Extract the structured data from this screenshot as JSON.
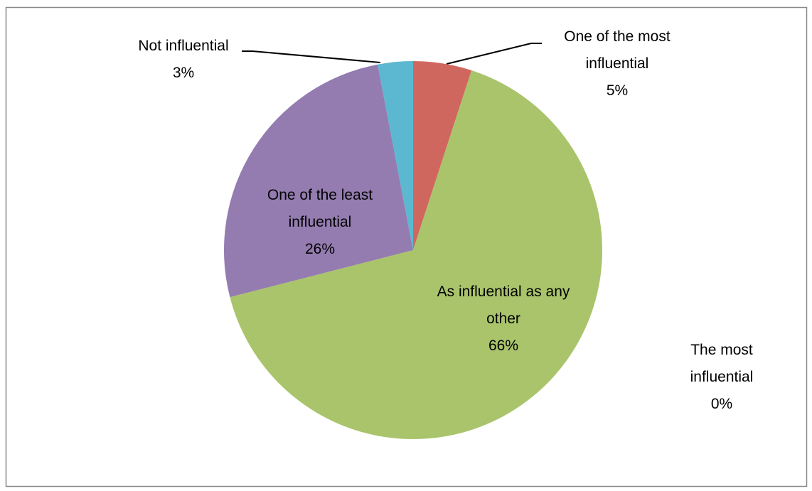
{
  "chart_data": {
    "type": "pie",
    "categories": [
      "The most influential",
      "One of the most influential",
      "As influential as any other",
      "One of the least influential",
      "Not influential"
    ],
    "values": [
      0,
      5,
      66,
      26,
      3
    ],
    "value_labels": [
      "0%",
      "5%",
      "66%",
      "26%",
      "3%"
    ],
    "colors": [
      "#4f81bd",
      "#d0675f",
      "#a9c46b",
      "#947cb0",
      "#5bb8d0"
    ]
  }
}
